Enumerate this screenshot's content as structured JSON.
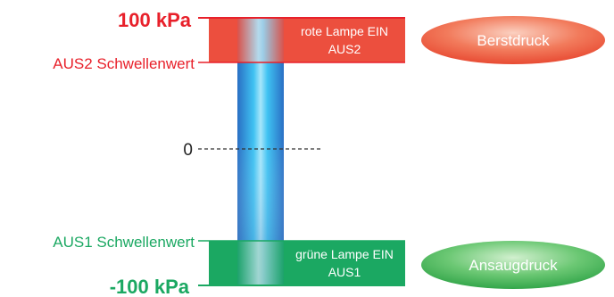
{
  "labels": {
    "max_pressure": "100 kPa",
    "min_pressure": "-100 kPa",
    "zero": "0",
    "aus2_threshold": "AUS2 Schwellenwert",
    "aus1_threshold": "AUS1 Schwellenwert"
  },
  "zones": {
    "top": {
      "line1": "rote Lampe EIN",
      "line2": "AUS2"
    },
    "bottom": {
      "line1": "grüne Lampe EIN",
      "line2": "AUS1"
    }
  },
  "badges": {
    "burst": "Berstdruck",
    "suction": "Ansaugdruck"
  },
  "colors": {
    "red": "#e8202a",
    "red_zone": "#ec4f3e",
    "green_zone": "#1ba862",
    "green_badge": "#3cb55a",
    "tube_blue": "#2d87d8"
  }
}
